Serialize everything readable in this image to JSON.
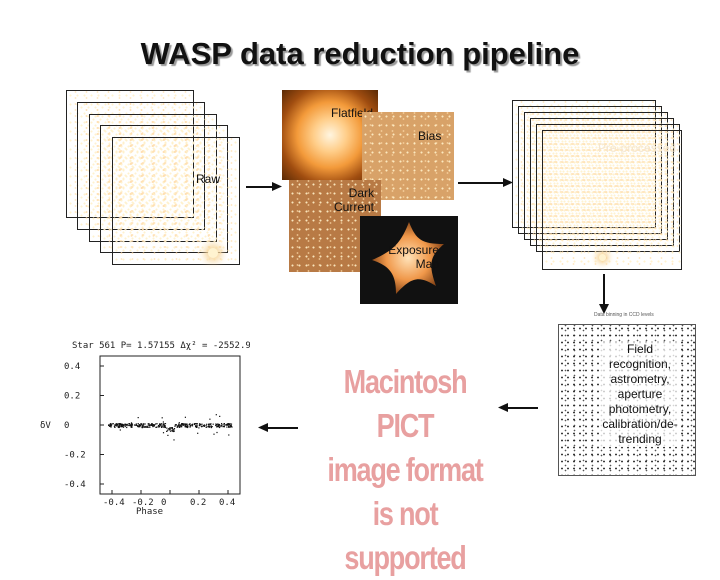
{
  "title": "WASP data reduction pipeline",
  "labels": {
    "flatfield": "Flatfield",
    "bias": "Bias",
    "raw": "Raw",
    "dark_current": "Dark\nCurrent",
    "exposure_map": "Exposure\nMap",
    "pre_processed": "Pre-processed",
    "field_steps": "Field recognition, astrometry, aperture photometry, calibration/de-trending"
  },
  "pict_placeholder": {
    "line1": "Macintosh PICT",
    "line2": "image format",
    "line3": "is not supported",
    "color": "#e8a0a0"
  },
  "field_plot_title": "Data binning in CCD levels",
  "lightcurve": {
    "header": "Star 561 P= 1.57155 Δχ² = -2552.9",
    "xlabel": "Phase",
    "ylabel": "δV",
    "x_ticks": [
      "-0.4",
      "-0.2",
      "0",
      "0.2",
      "0.4"
    ],
    "y_ticks": [
      "0.4",
      "0.2",
      "0",
      "-0.2",
      "-0.4"
    ]
  }
}
